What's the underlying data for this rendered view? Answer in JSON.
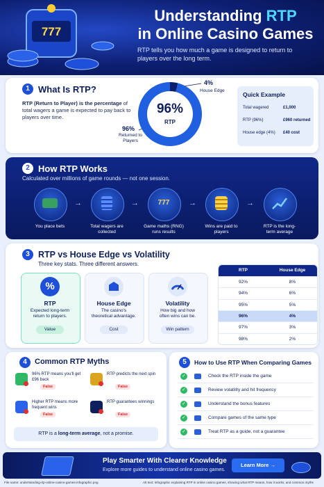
{
  "header": {
    "title_start": "Understanding ",
    "title_highlight": "RTP",
    "title_line2": "in Online Casino Games",
    "subtitle": "RTP tells you how much a game is designed to return to players over the long term.",
    "slot_label": "777"
  },
  "what_is_rtp": {
    "number": "1",
    "title": "What Is RTP?",
    "body_bold": "RTP (Return to Player) is the percentage",
    "body_rest": " of total wagers a game is expected to pay back to players over time.",
    "quick_example": {
      "title": "Quick Example",
      "rows": [
        [
          "Total wagered",
          "£1,000"
        ],
        [
          "RTP (96%)",
          "£960 returned"
        ],
        [
          "House edge (4%)",
          "£40 cost"
        ]
      ]
    }
  },
  "chart_data": {
    "type": "pie",
    "categories": [
      "Returned to Players",
      "House Edge"
    ],
    "values": [
      96,
      4
    ],
    "value_labels": [
      "96%",
      "4%"
    ],
    "colors": [
      "#1f5fe0",
      "#0b1d6b"
    ],
    "center_label": "RTP"
  },
  "how_it_works": {
    "number": "2",
    "title": "How RTP Works",
    "subtitle": "Calculated over millions of game rounds — not one session.",
    "steps": [
      {
        "label": "You place bets"
      },
      {
        "label": "Total wagers are collected"
      },
      {
        "label": "Game maths (RNG) runs results",
        "icon_label": "777"
      },
      {
        "label": "Wins are paid to players"
      },
      {
        "label": "RTP is the long-term average"
      }
    ]
  },
  "comparison": {
    "number": "3",
    "title": "RTP vs House Edge vs Volatility",
    "subtitle": "Three key stats. Three different answers.",
    "cards": [
      {
        "icon": "%",
        "title": "RTP",
        "text": "Expected long-term return to players.",
        "tag": "Value"
      },
      {
        "title": "House Edge",
        "text": "The casino's theoretical advantage.",
        "tag": "Cost"
      },
      {
        "title": "Volatility",
        "text": "How big and how often wins can be.",
        "tag": "Win pattern"
      }
    ],
    "table": {
      "headers": [
        "RTP",
        "House Edge"
      ],
      "rows": [
        [
          "92%",
          "8%"
        ],
        [
          "94%",
          "6%"
        ],
        [
          "95%",
          "5%"
        ],
        [
          "96%",
          "4%"
        ],
        [
          "97%",
          "3%"
        ],
        [
          "98%",
          "2%"
        ]
      ]
    }
  },
  "myths": {
    "number": "4",
    "title": "Common RTP Myths",
    "items": [
      {
        "text": "96% RTP means you'll get £96 back",
        "verdict": "False"
      },
      {
        "text": "RTP predicts the next spin",
        "verdict": "False"
      },
      {
        "text": "Higher RTP means more frequent wins",
        "verdict": "False"
      },
      {
        "text": "RTP guarantees winnings",
        "verdict": "False"
      }
    ],
    "note_start": "RTP is a ",
    "note_bold": "long-term average",
    "note_end": ", not a promise."
  },
  "tips": {
    "number": "5",
    "title": "How to Use RTP When Comparing Games",
    "items": [
      "Check the RTP inside the game",
      "Review volatility and hit frequency",
      "Understand the bonus features",
      "Compare games of the same type",
      "Treat RTP as a guide, not a guarantee"
    ]
  },
  "footer": {
    "title": "Play Smarter With Clearer Knowledge",
    "subtitle": "Explore more guides to understand online casino games.",
    "button": "Learn More →",
    "file_name": "File name: understanding-rtp-online-casino-games-infographic.png",
    "alt_text": "Alt text: Infographic explaining RTP in online casino games, showing what RTP means, how it works, and common myths"
  }
}
